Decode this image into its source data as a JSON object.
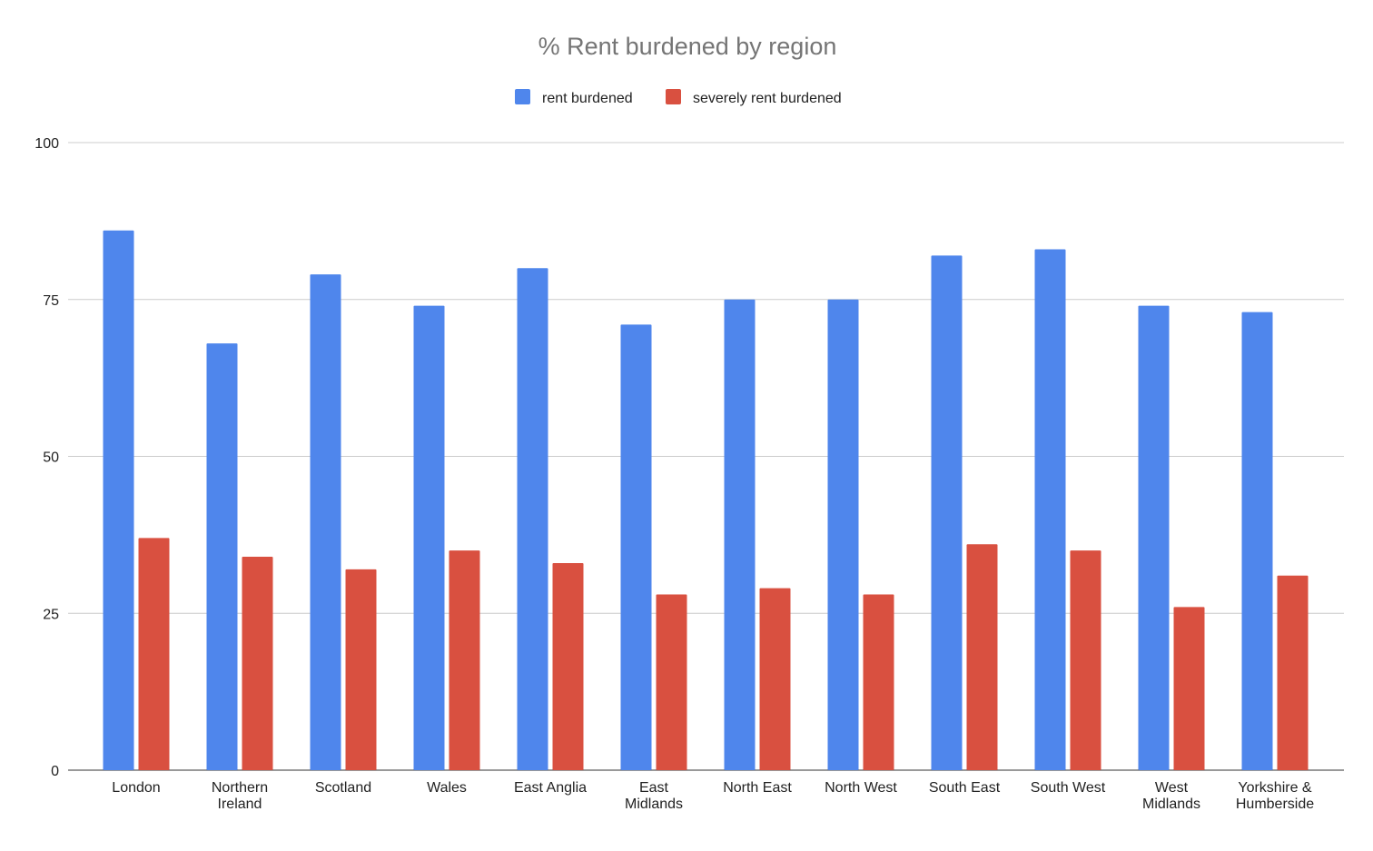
{
  "chart_data": {
    "type": "bar",
    "title": "% Rent burdened by region",
    "xlabel": "",
    "ylabel": "",
    "ylim": [
      0,
      100
    ],
    "yticks": [
      0,
      25,
      50,
      75,
      100
    ],
    "grid": true,
    "legend_position": "top",
    "categories": [
      [
        "London"
      ],
      [
        "Northern",
        "Ireland"
      ],
      [
        "Scotland"
      ],
      [
        "Wales"
      ],
      [
        "East Anglia"
      ],
      [
        "East",
        "Midlands"
      ],
      [
        "North East"
      ],
      [
        "North West"
      ],
      [
        "South East"
      ],
      [
        "South West"
      ],
      [
        "West",
        "Midlands"
      ],
      [
        "Yorkshire &",
        "Humberside"
      ]
    ],
    "series": [
      {
        "name": "rent burdened",
        "color": "#4f86ec",
        "values": [
          86,
          68,
          79,
          74,
          80,
          71,
          75,
          75,
          82,
          83,
          74,
          73
        ]
      },
      {
        "name": "severely rent burdened",
        "color": "#d95040",
        "values": [
          37,
          34,
          32,
          35,
          33,
          28,
          29,
          28,
          36,
          35,
          26,
          31
        ]
      }
    ]
  }
}
